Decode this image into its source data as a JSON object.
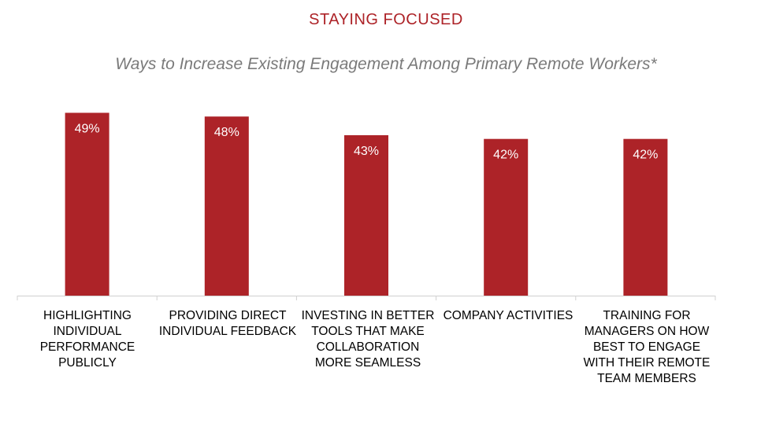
{
  "chart_data": {
    "type": "bar",
    "title": "STAYING FOCUSED",
    "subtitle": "Ways to Increase Existing Engagement Among Primary Remote Workers*",
    "categories": [
      "HIGHLIGHTING INDIVIDUAL PERFORMANCE PUBLICLY",
      "PROVIDING DIRECT INDIVIDUAL FEEDBACK",
      "INVESTING IN BETTER TOOLS THAT MAKE COLLABORATION MORE SEAMLESS",
      "COMPANY ACTIVITIES",
      "TRAINING FOR MANAGERS ON HOW BEST TO ENGAGE WITH THEIR REMOTE TEAM MEMBERS"
    ],
    "values": [
      49,
      48,
      43,
      42,
      42
    ],
    "data_labels": [
      "49%",
      "48%",
      "43%",
      "42%",
      "42%"
    ],
    "ylim": [
      0,
      55
    ],
    "xlabel": "",
    "ylabel": "",
    "grid": false,
    "legend": "none"
  },
  "colors": {
    "bar": "#AD2328",
    "title": "#AD2328",
    "data_label": "#ffffff",
    "axis": "#d0d0d0"
  }
}
